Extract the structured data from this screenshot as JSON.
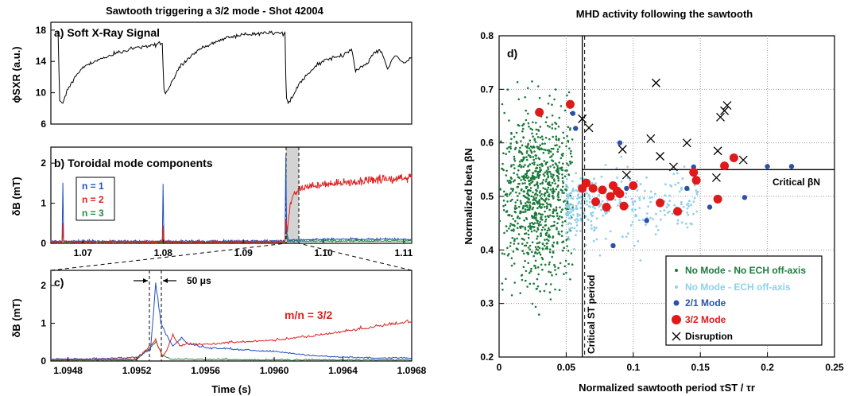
{
  "left_figure": {
    "title": "Sawtooth triggering a 3/2 mode - Shot 42004",
    "panel_a": {
      "label": "a) Soft X-Ray Signal",
      "ylabel": "ϕSXR (a.u.)",
      "yticks": [
        "6",
        "10",
        "14",
        "18"
      ]
    },
    "panel_b": {
      "label": "b) Toroidal mode components",
      "ylabel": "δB (mT)",
      "yticks": [
        "0",
        "1",
        "2"
      ],
      "xticks": [
        "1.07",
        "1.08",
        "1.09",
        "1.10",
        "1.11"
      ],
      "legend": [
        {
          "text": "n = 1",
          "color": "#1f4fbf"
        },
        {
          "text": "n = 2",
          "color": "#e02020"
        },
        {
          "text": "n = 3",
          "color": "#1e8a3c"
        }
      ]
    },
    "panel_c": {
      "label": "c)",
      "ylabel": "δB (mT)",
      "yticks": [
        "0",
        "1",
        "2"
      ],
      "xticks": [
        "1.0948",
        "1.0952",
        "1.0956",
        "1.0960",
        "1.0964",
        "1.0968"
      ],
      "xlabel": "Time (s)",
      "delay_label": "50 μs",
      "mode_label": "m/n = 3/2"
    }
  },
  "chart_data": [
    {
      "type": "line",
      "title": "Sawtooth triggering a 3/2 mode - Shot 42004",
      "panel": "a) Soft X-Ray Signal",
      "ylabel": "ϕSXR (a.u.)",
      "xlim": [
        1.066,
        1.111
      ],
      "ylim": [
        6,
        19
      ],
      "series": [
        {
          "name": "",
          "x": [
            1.0668,
            1.0669,
            1.0671,
            1.0675,
            1.068,
            1.069,
            1.07,
            1.072,
            1.074,
            1.076,
            1.078,
            1.0799,
            1.0801,
            1.0803,
            1.0808,
            1.082,
            1.084,
            1.086,
            1.088,
            1.09,
            1.092,
            1.094,
            1.0952,
            1.0953,
            1.0954,
            1.0956,
            1.0962,
            1.097,
            1.098,
            1.099,
            1.1,
            1.101,
            1.1025,
            1.1035,
            1.104,
            1.1055,
            1.106,
            1.107,
            1.108,
            1.109,
            1.11,
            1.111
          ],
          "values": [
            17.8,
            17.5,
            9.0,
            8.7,
            10.2,
            12.0,
            13.3,
            14.2,
            15.0,
            15.6,
            16.0,
            16.3,
            10.5,
            9.8,
            10.8,
            13.2,
            15.2,
            16.3,
            17.0,
            17.4,
            17.6,
            17.7,
            17.6,
            12.0,
            9.3,
            8.6,
            9.6,
            11.2,
            12.3,
            13.4,
            14.0,
            14.4,
            14.8,
            15.6,
            12.8,
            13.8,
            14.7,
            15.6,
            13.2,
            14.8,
            13.8,
            14.5
          ]
        }
      ]
    },
    {
      "type": "line",
      "panel": "b) Toroidal mode components",
      "ylabel": "δB (mT)",
      "xticks": [
        1.07,
        1.08,
        1.09,
        1.1,
        1.11
      ],
      "xlim": [
        1.066,
        1.111
      ],
      "ylim": [
        0,
        2.4
      ],
      "series": [
        {
          "name": "n = 1",
          "x": [
            1.066,
            1.0674,
            1.0675,
            1.0676,
            1.077,
            1.0799,
            1.08,
            1.0801,
            1.088,
            1.0952,
            1.0953,
            1.0954,
            1.0956,
            1.1,
            1.111
          ],
          "values": [
            0.05,
            0.05,
            1.5,
            0.05,
            0.05,
            0.05,
            1.5,
            0.05,
            0.05,
            0.06,
            2.1,
            0.3,
            0.08,
            0.1,
            0.1
          ]
        },
        {
          "name": "n = 2",
          "x": [
            1.066,
            1.0674,
            1.0675,
            1.0676,
            1.0799,
            1.08,
            1.0801,
            1.0952,
            1.0953,
            1.0955,
            1.0958,
            1.0962,
            1.097,
            1.098,
            1.1,
            1.102,
            1.104,
            1.106,
            1.108,
            1.111
          ],
          "values": [
            0.03,
            0.03,
            0.5,
            0.03,
            0.03,
            0.45,
            0.03,
            0.03,
            0.6,
            0.3,
            0.85,
            1.2,
            1.35,
            1.4,
            1.45,
            1.5,
            1.5,
            1.55,
            1.6,
            1.62
          ]
        },
        {
          "name": "n = 3",
          "x": [
            1.066,
            1.0674,
            1.0675,
            1.0676,
            1.0799,
            1.08,
            1.0801,
            1.0952,
            1.0953,
            1.0955,
            1.111
          ],
          "values": [
            0.02,
            0.02,
            0.3,
            0.02,
            0.02,
            0.25,
            0.02,
            0.02,
            0.5,
            0.05,
            0.06
          ]
        }
      ]
    },
    {
      "type": "line",
      "panel": "c)",
      "xlabel": "Time (s)",
      "ylabel": "δB (mT)",
      "xticks": [
        1.0948,
        1.0952,
        1.0956,
        1.096,
        1.0964,
        1.0968
      ],
      "xlim": [
        1.0947,
        1.0968
      ],
      "ylim": [
        0,
        2.4
      ],
      "annotations": [
        "50 μs",
        "m/n = 3/2"
      ],
      "series": [
        {
          "name": "n = 1",
          "x": [
            1.0947,
            1.095,
            1.0952,
            1.09528,
            1.09531,
            1.09534,
            1.09537,
            1.09541,
            1.09546,
            1.0955,
            1.0956,
            1.0958,
            1.096,
            1.0962,
            1.0964,
            1.0966,
            1.0968
          ],
          "values": [
            0.05,
            0.06,
            0.1,
            0.3,
            2.05,
            1.0,
            0.7,
            0.4,
            0.6,
            0.45,
            0.35,
            0.3,
            0.25,
            0.15,
            0.1,
            0.08,
            0.08
          ]
        },
        {
          "name": "n = 2",
          "x": [
            1.0947,
            1.0952,
            1.09531,
            1.09535,
            1.09538,
            1.09541,
            1.09545,
            1.0955,
            1.0956,
            1.0958,
            1.096,
            1.0962,
            1.0964,
            1.0966,
            1.0968
          ],
          "values": [
            0.03,
            0.05,
            0.55,
            0.1,
            0.35,
            0.7,
            0.4,
            0.45,
            0.45,
            0.5,
            0.55,
            0.65,
            0.78,
            0.92,
            1.05
          ]
        },
        {
          "name": "n = 3",
          "x": [
            1.0947,
            1.0952,
            1.09531,
            1.09535,
            1.0954,
            1.0956,
            1.096,
            1.0964,
            1.0968
          ],
          "values": [
            0.02,
            0.03,
            0.5,
            0.15,
            0.05,
            0.04,
            0.03,
            0.03,
            0.03
          ]
        }
      ]
    },
    {
      "type": "scatter",
      "title": "MHD activity following the sawtooth",
      "panel_label": "d)",
      "xlabel": "Normalized sawtooth period τST / τr",
      "ylabel": "Normalized beta βN",
      "xlim": [
        0,
        0.25
      ],
      "ylim": [
        0.2,
        0.8
      ],
      "xticks": [
        "0",
        "0.05",
        "0.1",
        "0.15",
        "0.2",
        "0.25"
      ],
      "yticks": [
        "0.2",
        "0.3",
        "0.4",
        "0.5",
        "0.6",
        "0.7",
        "0.8"
      ],
      "grid": true,
      "legend_position": "bottom-right",
      "thresholds": {
        "critical_st_period": 0.062,
        "critical_beta": 0.55
      },
      "threshold_labels": {
        "vertical": "Critical ST period",
        "horizontal": "Critical βN"
      },
      "series": [
        {
          "name": "No Mode - No ECH off-axis",
          "color": "#1a7a3a",
          "marker": "small-dot",
          "cloud": {
            "x_range": [
              0.0,
              0.055
            ],
            "y_center": 0.5,
            "y_spread": 0.08,
            "count": 900
          }
        },
        {
          "name": "No Mode - ECH off-axis",
          "color": "#8fd0ec",
          "marker": "small-dot",
          "cloud": {
            "x_range": [
              0.05,
              0.15
            ],
            "y_center": 0.48,
            "y_spread": 0.03,
            "count": 300
          }
        },
        {
          "name": "2/1 Mode",
          "color": "#2c52a8",
          "marker": "dot",
          "x": [
            0.055,
            0.057,
            0.09,
            0.095,
            0.11,
            0.14,
            0.145,
            0.157,
            0.183,
            0.2,
            0.218,
            0.085
          ],
          "values": [
            0.655,
            0.627,
            0.6,
            0.515,
            0.455,
            0.515,
            0.555,
            0.48,
            0.498,
            0.556,
            0.556,
            0.408
          ]
        },
        {
          "name": "3/2 Mode",
          "color": "#e01a1a",
          "marker": "large-dot",
          "x": [
            0.03,
            0.053,
            0.062,
            0.065,
            0.07,
            0.072,
            0.077,
            0.08,
            0.083,
            0.085,
            0.088,
            0.09,
            0.093,
            0.1,
            0.12,
            0.133,
            0.145,
            0.147,
            0.163,
            0.168,
            0.175
          ],
          "values": [
            0.657,
            0.672,
            0.515,
            0.525,
            0.515,
            0.49,
            0.512,
            0.48,
            0.5,
            0.52,
            0.51,
            0.505,
            0.482,
            0.52,
            0.488,
            0.472,
            0.545,
            0.53,
            0.495,
            0.557,
            0.572
          ]
        },
        {
          "name": "Disruption",
          "color": "#000000",
          "marker": "x",
          "x": [
            0.062,
            0.067,
            0.092,
            0.095,
            0.113,
            0.117,
            0.12,
            0.13,
            0.14,
            0.162,
            0.163,
            0.165,
            0.168,
            0.17,
            0.182
          ],
          "values": [
            0.645,
            0.628,
            0.588,
            0.54,
            0.608,
            0.712,
            0.575,
            0.555,
            0.6,
            0.535,
            0.585,
            0.648,
            0.66,
            0.67,
            0.568
          ]
        }
      ]
    }
  ]
}
